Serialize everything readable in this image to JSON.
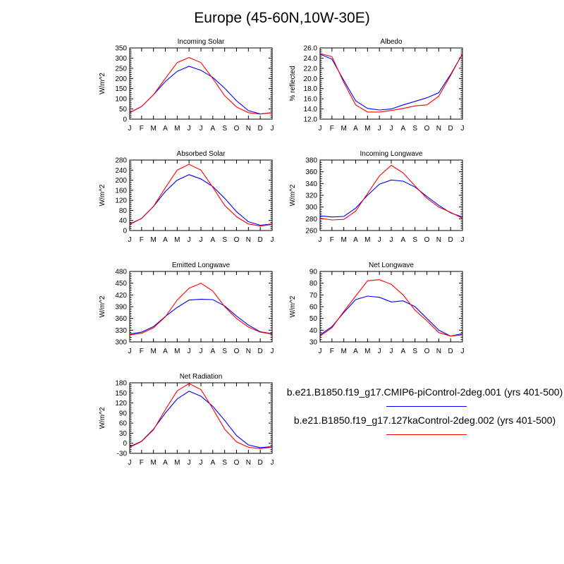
{
  "title": "Europe (45-60N,10W-30E)",
  "legend": [
    {
      "label": "b.e21.B1850.f19_g17.CMIP6-piControl-2deg.001 (yrs 401-500)",
      "color": "#0000ff"
    },
    {
      "label": "b.e21.B1850.f19_g17.127kaControl-2deg.002 (yrs 401-500)",
      "color": "#ff0000"
    }
  ],
  "chart_data": [
    {
      "type": "line",
      "title": "Incoming Solar",
      "ylabel": "W/m^2",
      "categories": [
        "J",
        "F",
        "M",
        "A",
        "M",
        "J",
        "J",
        "A",
        "S",
        "O",
        "N",
        "D",
        "J"
      ],
      "ylim": [
        0,
        350
      ],
      "yticks": [
        "0",
        "50",
        "100",
        "150",
        "200",
        "250",
        "300",
        "350"
      ],
      "series": [
        {
          "color": "#0000ff",
          "values": [
            32,
            62,
            120,
            185,
            235,
            260,
            240,
            205,
            152,
            90,
            42,
            26,
            32
          ]
        },
        {
          "color": "#ff0000",
          "values": [
            32,
            62,
            120,
            200,
            278,
            303,
            278,
            200,
            115,
            60,
            32,
            25,
            32
          ]
        }
      ]
    },
    {
      "type": "line",
      "title": "Albedo",
      "ylabel": "% reflected",
      "categories": [
        "J",
        "F",
        "M",
        "A",
        "M",
        "J",
        "J",
        "A",
        "S",
        "O",
        "N",
        "D",
        "J"
      ],
      "ylim": [
        12.0,
        26.0
      ],
      "yticks": [
        "12.0",
        "14.0",
        "16.0",
        "18.0",
        "20.0",
        "22.0",
        "24.0",
        "26.0"
      ],
      "series": [
        {
          "color": "#0000ff",
          "values": [
            24.8,
            23.8,
            19.6,
            15.6,
            14.1,
            13.8,
            14.0,
            14.8,
            15.5,
            16.2,
            17.2,
            20.8,
            24.8
          ]
        },
        {
          "color": "#ff0000",
          "values": [
            24.9,
            24.3,
            19.2,
            14.8,
            13.4,
            13.4,
            13.7,
            14.1,
            14.6,
            14.8,
            16.5,
            20.6,
            24.9
          ]
        }
      ]
    },
    {
      "type": "line",
      "title": "Absorbed Solar",
      "ylabel": "W/m^2",
      "categories": [
        "J",
        "F",
        "M",
        "A",
        "M",
        "J",
        "J",
        "A",
        "S",
        "O",
        "N",
        "D",
        "J"
      ],
      "ylim": [
        0,
        280
      ],
      "yticks": [
        "0",
        "40",
        "80",
        "120",
        "160",
        "200",
        "240",
        "280"
      ],
      "series": [
        {
          "color": "#0000ff",
          "values": [
            26,
            48,
            96,
            155,
            200,
            222,
            205,
            175,
            128,
            75,
            35,
            21,
            26
          ]
        },
        {
          "color": "#ff0000",
          "values": [
            24,
            48,
            96,
            170,
            240,
            263,
            240,
            172,
            100,
            55,
            26,
            18,
            24
          ]
        }
      ]
    },
    {
      "type": "line",
      "title": "Incoming Longwave",
      "ylabel": "W/m^2",
      "categories": [
        "J",
        "F",
        "M",
        "A",
        "M",
        "J",
        "J",
        "A",
        "S",
        "O",
        "N",
        "D",
        "J"
      ],
      "ylim": [
        260,
        380
      ],
      "yticks": [
        "260",
        "280",
        "300",
        "320",
        "340",
        "360",
        "380"
      ],
      "series": [
        {
          "color": "#0000ff",
          "values": [
            285,
            283,
            284,
            298,
            320,
            339,
            346,
            344,
            334,
            318,
            303,
            290,
            283
          ]
        },
        {
          "color": "#ff0000",
          "values": [
            281,
            278,
            279,
            293,
            323,
            353,
            371,
            358,
            336,
            315,
            300,
            291,
            281
          ]
        }
      ]
    },
    {
      "type": "line",
      "title": "Emitted Longwave",
      "ylabel": "W/m^2",
      "categories": [
        "J",
        "F",
        "M",
        "A",
        "M",
        "J",
        "J",
        "A",
        "S",
        "O",
        "N",
        "D",
        "J"
      ],
      "ylim": [
        300,
        480
      ],
      "yticks": [
        "300",
        "330",
        "360",
        "390",
        "420",
        "450",
        "480"
      ],
      "series": [
        {
          "color": "#0000ff",
          "values": [
            320,
            325,
            339,
            365,
            388,
            407,
            409,
            408,
            392,
            366,
            343,
            326,
            321
          ]
        },
        {
          "color": "#ff0000",
          "values": [
            318,
            322,
            336,
            364,
            407,
            437,
            450,
            430,
            390,
            360,
            338,
            325,
            320
          ]
        }
      ]
    },
    {
      "type": "line",
      "title": "Net Longwave",
      "ylabel": "W/m^2",
      "categories": [
        "J",
        "F",
        "M",
        "A",
        "M",
        "J",
        "J",
        "A",
        "S",
        "O",
        "N",
        "D",
        "J"
      ],
      "ylim": [
        30,
        90
      ],
      "yticks": [
        "30",
        "40",
        "50",
        "60",
        "70",
        "80",
        "90"
      ],
      "series": [
        {
          "color": "#0000ff",
          "values": [
            36,
            43,
            55,
            66,
            69,
            68,
            64,
            65,
            60,
            50,
            40,
            35,
            37
          ]
        },
        {
          "color": "#ff0000",
          "values": [
            35,
            42,
            56,
            69,
            82,
            83,
            79,
            70,
            57,
            48,
            38,
            35,
            36
          ]
        }
      ]
    },
    {
      "type": "line",
      "title": "Net Radiation",
      "ylabel": "W/m^2",
      "categories": [
        "J",
        "F",
        "M",
        "A",
        "M",
        "J",
        "J",
        "A",
        "S",
        "O",
        "N",
        "D",
        "J"
      ],
      "ylim": [
        -30,
        180
      ],
      "yticks": [
        "-30",
        "0",
        "30",
        "60",
        "90",
        "120",
        "150",
        "180"
      ],
      "series": [
        {
          "color": "#0000ff",
          "values": [
            -10,
            6,
            42,
            90,
            132,
            155,
            140,
            110,
            68,
            23,
            -5,
            -13,
            -10
          ]
        },
        {
          "color": "#ff0000",
          "values": [
            -12,
            5,
            40,
            100,
            156,
            178,
            160,
            103,
            42,
            4,
            -12,
            -16,
            -12
          ]
        }
      ]
    }
  ]
}
